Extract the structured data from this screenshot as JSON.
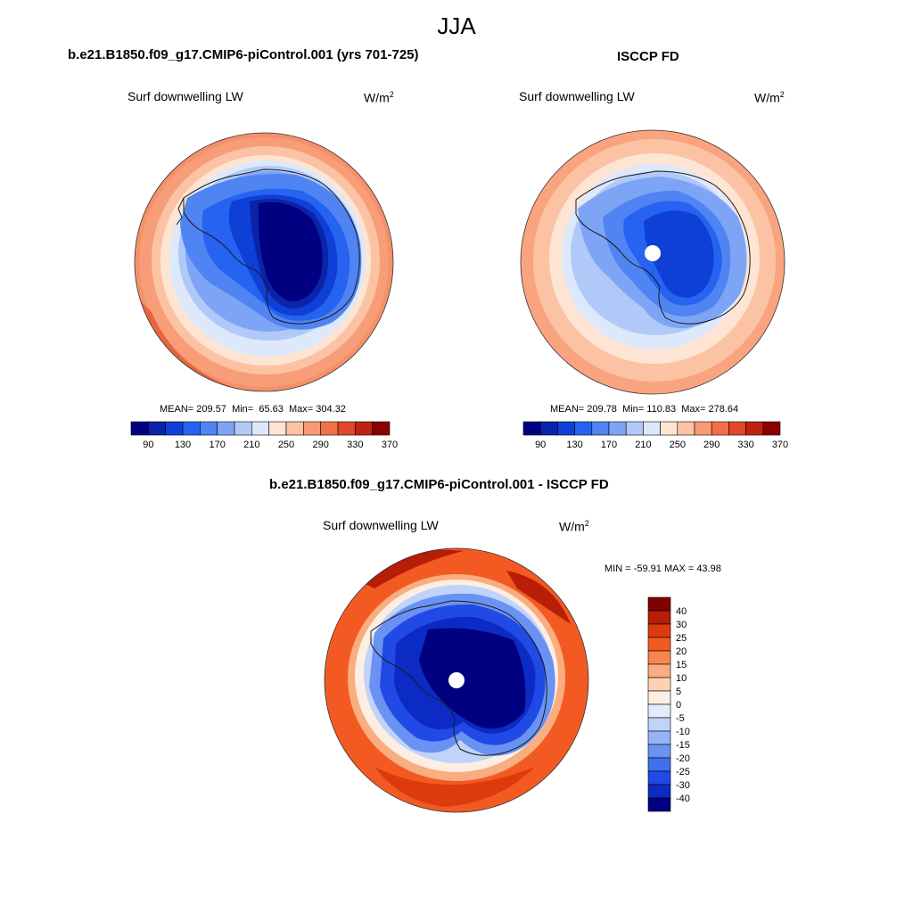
{
  "figure": {
    "title": "JJA"
  },
  "panels": [
    {
      "id": "model",
      "title": "b.e21.B1850.f09_g17.CMIP6-piControl.001 (yrs 701-725)",
      "variable": "Surf downwelling LW",
      "units": "W/m",
      "units_exp": "2",
      "stats": {
        "mean_label": "MEAN=",
        "mean": "209.57",
        "min_label": "Min=",
        "min": "65.63",
        "max_label": "Max=",
        "max": "304.32"
      },
      "colorbar": {
        "ticks": [
          "90",
          "130",
          "170",
          "210",
          "250",
          "290",
          "330",
          "370"
        ]
      }
    },
    {
      "id": "obs",
      "title": "ISCCP FD",
      "variable": "Surf downwelling LW",
      "units": "W/m",
      "units_exp": "2",
      "stats": {
        "mean_label": "MEAN=",
        "mean": "209.78",
        "min_label": "Min=",
        "min": "110.83",
        "max_label": "Max=",
        "max": "278.64"
      },
      "colorbar": {
        "ticks": [
          "90",
          "130",
          "170",
          "210",
          "250",
          "290",
          "330",
          "370"
        ]
      }
    },
    {
      "id": "diff",
      "title": "b.e21.B1850.f09_g17.CMIP6-piControl.001 - ISCCP FD",
      "variable": "Surf downwelling LW",
      "units": "W/m",
      "units_exp": "2",
      "stats_text": "MIN = -59.91 MAX =  43.98",
      "colorbar": {
        "labels": [
          "40",
          "30",
          "25",
          "20",
          "15",
          "10",
          "5",
          "0",
          "-5",
          "-10",
          "-15",
          "-20",
          "-25",
          "-30",
          "-40"
        ]
      }
    }
  ],
  "colors": {
    "abs_scale": [
      "#000080",
      "#0a23a8",
      "#0e3fd6",
      "#2563f0",
      "#4f84f2",
      "#7ea5f5",
      "#b1c9f8",
      "#dde8fb",
      "#fde4d3",
      "#fbc3a4",
      "#f89a74",
      "#f27048",
      "#e2462a",
      "#bf2310",
      "#8b0000"
    ],
    "diff_scale": [
      "#800000",
      "#b81d06",
      "#de3a10",
      "#f35a22",
      "#f7864e",
      "#f9ad80",
      "#fcd2b5",
      "#fdeee3",
      "#e4ecfb",
      "#c0d3f8",
      "#95b4f5",
      "#6a92f2",
      "#406ff0",
      "#2149e6",
      "#0c2bc4",
      "#000080"
    ]
  }
}
